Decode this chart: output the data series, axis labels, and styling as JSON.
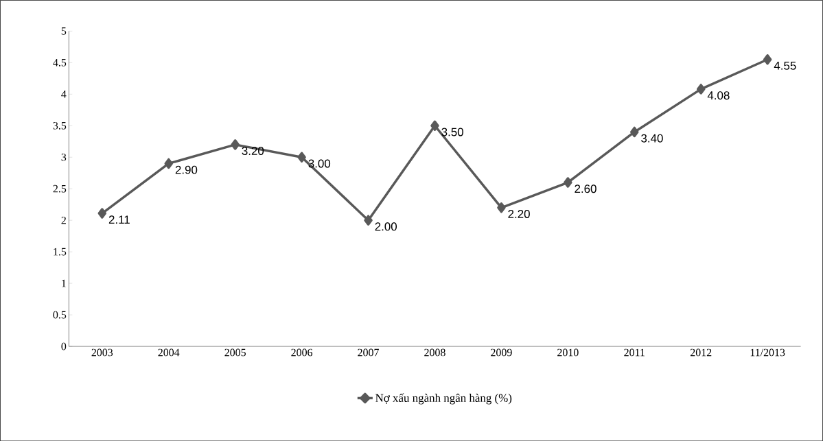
{
  "chart_data": {
    "type": "line",
    "categories": [
      "2003",
      "2004",
      "2005",
      "2006",
      "2007",
      "2008",
      "2009",
      "2010",
      "2011",
      "2012",
      "11/2013"
    ],
    "series": [
      {
        "name": "Nợ xấu ngành ngân hàng (%)",
        "color": "#595959",
        "values": [
          2.11,
          2.9,
          3.2,
          3.0,
          2.0,
          3.5,
          2.2,
          2.6,
          3.4,
          4.08,
          4.55
        ],
        "value_labels": [
          "2.11",
          "2.90",
          "3.20",
          "3.00",
          "2.00",
          "3.50",
          "2.20",
          "2.60",
          "3.40",
          "4.08",
          "4.55"
        ]
      }
    ],
    "ylim": [
      0,
      5
    ],
    "yticks": [
      0,
      0.5,
      1,
      1.5,
      2,
      2.5,
      3,
      3.5,
      4,
      4.5,
      5
    ],
    "marker": "diamond",
    "line_style": "solid",
    "legend": "bottom",
    "grid": false
  }
}
